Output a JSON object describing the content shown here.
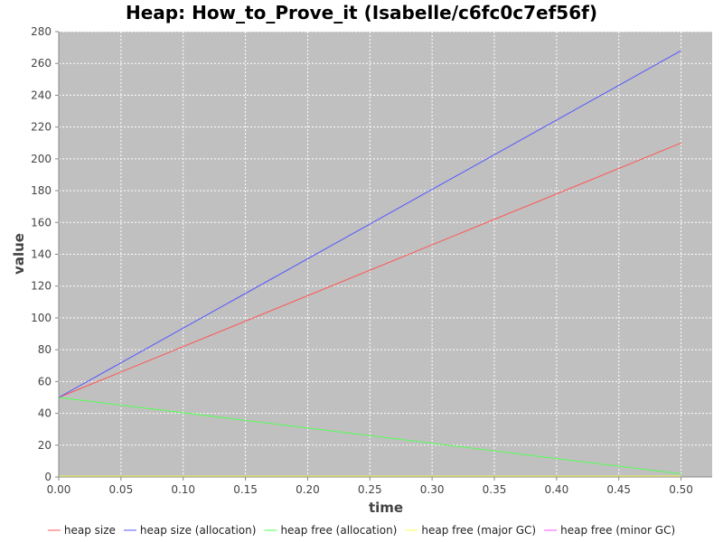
{
  "chart_data": {
    "type": "line",
    "title": "Heap: How_to_Prove_it (Isabelle/c6fc0c7ef56f)",
    "xlabel": "time",
    "ylabel": "value",
    "xlim": [
      0.0,
      0.525
    ],
    "ylim": [
      0,
      280
    ],
    "x_ticks": [
      "0.00",
      "0.05",
      "0.10",
      "0.15",
      "0.20",
      "0.25",
      "0.30",
      "0.35",
      "0.40",
      "0.45",
      "0.50"
    ],
    "y_ticks": [
      "0",
      "20",
      "40",
      "60",
      "80",
      "100",
      "120",
      "140",
      "160",
      "180",
      "200",
      "220",
      "240",
      "260",
      "280"
    ],
    "grid": true,
    "legend_position": "bottom",
    "plot_background": "#c0c0c0",
    "series": [
      {
        "name": "heap size",
        "color": "#ff5555",
        "x": [
          0.0,
          0.5
        ],
        "y": [
          50,
          210
        ]
      },
      {
        "name": "heap size (allocation)",
        "color": "#5555ff",
        "x": [
          0.0,
          0.5
        ],
        "y": [
          50,
          268
        ]
      },
      {
        "name": "heap free (allocation)",
        "color": "#55ff55",
        "x": [
          0.0,
          0.5
        ],
        "y": [
          50,
          2
        ]
      },
      {
        "name": "heap free (major GC)",
        "color": "#ffff55",
        "x": [
          0.0,
          0.5
        ],
        "y": [
          0.5,
          0.5
        ]
      },
      {
        "name": "heap free (minor GC)",
        "color": "#ff55ff",
        "x": [
          0.0,
          0.5
        ],
        "y": [
          0,
          0
        ]
      }
    ]
  }
}
